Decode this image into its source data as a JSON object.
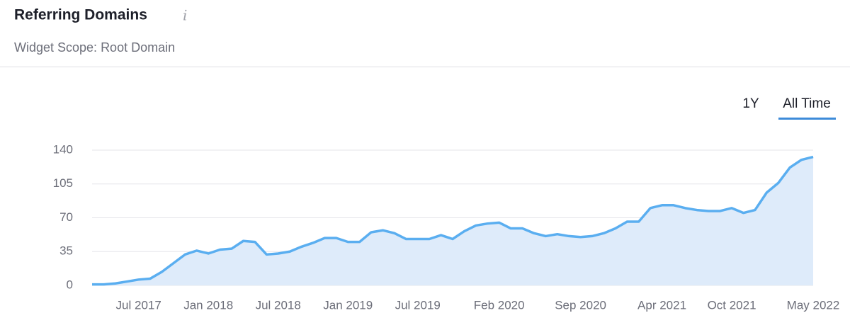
{
  "header": {
    "title": "Referring Domains",
    "info_icon": "i",
    "subtitle": "Widget Scope: Root Domain"
  },
  "tabs": [
    "1Y",
    "All Time"
  ],
  "chart_data": {
    "type": "area",
    "categories": [
      null,
      null,
      null,
      null,
      "Jul 2017",
      null,
      null,
      null,
      null,
      null,
      "Jan 2018",
      null,
      null,
      null,
      null,
      null,
      "Jul 2018",
      null,
      null,
      null,
      null,
      null,
      "Jan 2019",
      null,
      null,
      null,
      null,
      null,
      "Jul 2019",
      null,
      null,
      null,
      null,
      null,
      null,
      "Feb 2020",
      null,
      null,
      null,
      null,
      null,
      null,
      "Sep 2020",
      null,
      null,
      null,
      null,
      null,
      null,
      "Apr 2021",
      null,
      null,
      null,
      null,
      null,
      "Oct 2021",
      null,
      null,
      null,
      null,
      null,
      null,
      "May 2022"
    ],
    "values": [
      1,
      1,
      2,
      4,
      6,
      7,
      14,
      23,
      32,
      36,
      33,
      37,
      38,
      46,
      45,
      32,
      33,
      35,
      40,
      44,
      49,
      49,
      45,
      45,
      55,
      57,
      54,
      48,
      48,
      48,
      52,
      48,
      56,
      62,
      64,
      65,
      59,
      59,
      54,
      51,
      53,
      51,
      50,
      51,
      54,
      59,
      66,
      66,
      80,
      83,
      83,
      80,
      78,
      77,
      77,
      80,
      75,
      78,
      96,
      106,
      122,
      130,
      133
    ],
    "color": "#5aaef0",
    "fill": "#deebfa",
    "ylim": [
      0,
      140
    ],
    "yticks": [
      0,
      35,
      70,
      105,
      140
    ],
    "grid": true
  }
}
